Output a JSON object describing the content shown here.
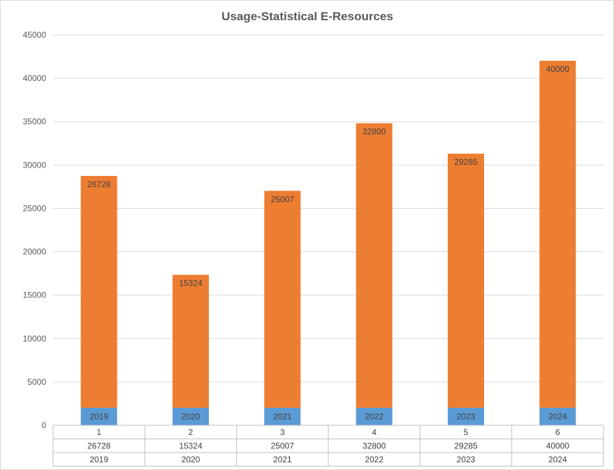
{
  "chart_data": {
    "type": "bar",
    "stacked": true,
    "title": "Usage-Statistical E-Resources",
    "xlabel": "",
    "ylabel": "",
    "categories": [
      "1",
      "2",
      "3",
      "4",
      "5",
      "6"
    ],
    "ylim": [
      0,
      45000
    ],
    "yticks": [
      "0",
      "5000",
      "10000",
      "15000",
      "20000",
      "25000",
      "30000",
      "35000",
      "40000",
      "45000"
    ],
    "grid": true,
    "legend": "table-below",
    "series": [
      {
        "name": "",
        "color": "#5b9bd5",
        "values": [
          2019,
          2020,
          2021,
          2022,
          2023,
          2024
        ],
        "labels": [
          "2019",
          "2020",
          "2021",
          "2022",
          "2023",
          "2024"
        ]
      },
      {
        "name": "",
        "color": "#ed7d31",
        "values": [
          26728,
          15324,
          25007,
          32800,
          29285,
          40000
        ],
        "labels": [
          "26728",
          "15324",
          "25007",
          "32800",
          "29285",
          "40000"
        ]
      }
    ],
    "table": {
      "header": [
        "1",
        "2",
        "3",
        "4",
        "5",
        "6"
      ],
      "rows": [
        [
          "26728",
          "15324",
          "25007",
          "32800",
          "29285",
          "40000"
        ],
        [
          "2019",
          "2020",
          "2021",
          "2022",
          "2023",
          "2024"
        ]
      ]
    }
  }
}
